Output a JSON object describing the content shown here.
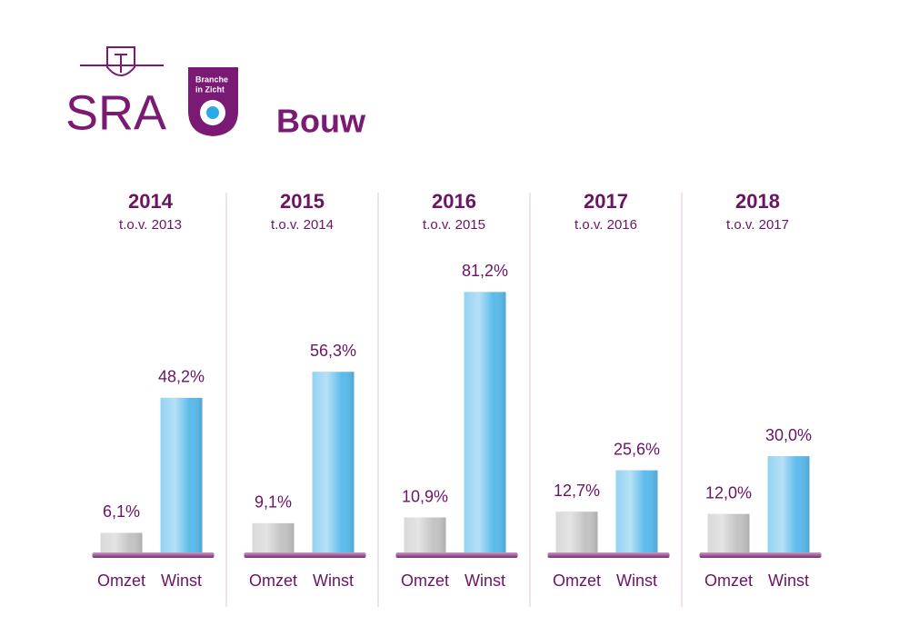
{
  "header": {
    "logo": "SRA",
    "badge": [
      "Branche",
      "in Zicht"
    ],
    "title": "Bouw"
  },
  "chart_data": [
    {
      "type": "bar",
      "title": "2014",
      "subtitle": "t.o.v. 2013",
      "categories": [
        "Omzet",
        "Winst"
      ],
      "values": [
        6.1,
        48.2
      ],
      "value_labels": [
        "6,1%",
        "48,2%"
      ],
      "colors": [
        "#c4c4c4",
        "#5cbbec"
      ]
    },
    {
      "type": "bar",
      "title": "2015",
      "subtitle": "t.o.v. 2014",
      "categories": [
        "Omzet",
        "Winst"
      ],
      "values": [
        9.1,
        56.3
      ],
      "value_labels": [
        "9,1%",
        "56,3%"
      ],
      "colors": [
        "#c4c4c4",
        "#5cbbec"
      ]
    },
    {
      "type": "bar",
      "title": "2016",
      "subtitle": "t.o.v. 2015",
      "categories": [
        "Omzet",
        "Winst"
      ],
      "values": [
        10.9,
        81.2
      ],
      "value_labels": [
        "10,9%",
        "81,2%"
      ],
      "colors": [
        "#c4c4c4",
        "#5cbbec"
      ]
    },
    {
      "type": "bar",
      "title": "2017",
      "subtitle": "t.o.v. 2016",
      "categories": [
        "Omzet",
        "Winst"
      ],
      "values": [
        12.7,
        25.6
      ],
      "value_labels": [
        "12,7%",
        "25,6%"
      ],
      "colors": [
        "#c4c4c4",
        "#5cbbec"
      ]
    },
    {
      "type": "bar",
      "title": "2018",
      "subtitle": "t.o.v. 2017",
      "categories": [
        "Omzet",
        "Winst"
      ],
      "values": [
        12.0,
        30.0
      ],
      "value_labels": [
        "12,0%",
        "30,0%"
      ],
      "colors": [
        "#c4c4c4",
        "#5cbbec"
      ]
    }
  ]
}
